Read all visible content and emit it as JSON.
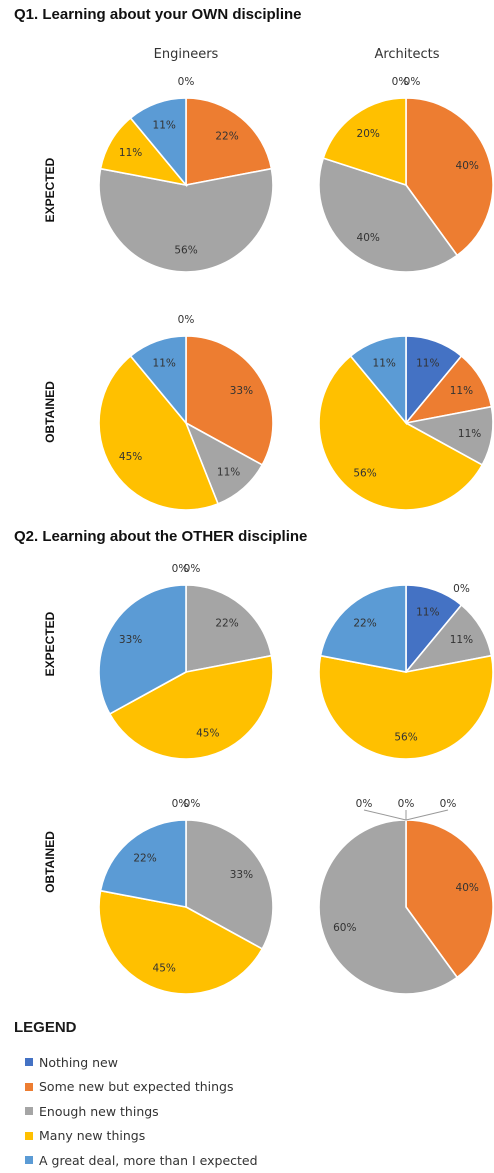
{
  "sections": [
    {
      "title": "Q1. Learning about your OWN discipline"
    },
    {
      "title": "Q2. Learning about the OTHER discipline"
    }
  ],
  "columns": [
    "Engineers",
    "Architects"
  ],
  "rows": [
    "EXPECTED",
    "OBTAINED"
  ],
  "legend": {
    "title": "LEGEND",
    "items": [
      {
        "label": "Nothing new",
        "color": "#4472c4"
      },
      {
        "label": "Some new but expected things",
        "color": "#ed7d31"
      },
      {
        "label": "Enough new things",
        "color": "#a5a5a5"
      },
      {
        "label": "Many new things",
        "color": "#ffc000"
      },
      {
        "label": "A great deal, more than I expected",
        "color": "#5b9bd5"
      }
    ]
  },
  "chart_data": [
    {
      "type": "pie",
      "question": "Q1",
      "group": "Engineers",
      "row": "EXPECTED",
      "slices": [
        {
          "category": "Nothing new",
          "value": 0,
          "label": "0%"
        },
        {
          "category": "Some new but expected things",
          "value": 22,
          "label": "22%"
        },
        {
          "category": "Enough new things",
          "value": 56,
          "label": "56%"
        },
        {
          "category": "Many new things",
          "value": 11,
          "label": "11%"
        },
        {
          "category": "A great deal, more than I expected",
          "value": 11,
          "label": "11%"
        }
      ]
    },
    {
      "type": "pie",
      "question": "Q1",
      "group": "Architects",
      "row": "EXPECTED",
      "slices": [
        {
          "category": "Nothing new",
          "value": 0,
          "label": "0%"
        },
        {
          "category": "Some new but expected things",
          "value": 40,
          "label": "40%"
        },
        {
          "category": "Enough new things",
          "value": 40,
          "label": "40%"
        },
        {
          "category": "Many new things",
          "value": 20,
          "label": "20%"
        },
        {
          "category": "A great deal, more than I expected",
          "value": 0,
          "label": "0%"
        }
      ]
    },
    {
      "type": "pie",
      "question": "Q1",
      "group": "Engineers",
      "row": "OBTAINED",
      "slices": [
        {
          "category": "Nothing new",
          "value": 0,
          "label": "0%"
        },
        {
          "category": "Some new but expected things",
          "value": 33,
          "label": "33%"
        },
        {
          "category": "Enough new things",
          "value": 11,
          "label": "11%"
        },
        {
          "category": "Many new things",
          "value": 45,
          "label": "45%"
        },
        {
          "category": "A great deal, more than I expected",
          "value": 11,
          "label": "11%"
        }
      ]
    },
    {
      "type": "pie",
      "question": "Q1",
      "group": "Architects",
      "row": "OBTAINED",
      "slices": [
        {
          "category": "Nothing new",
          "value": 11,
          "label": "11%"
        },
        {
          "category": "Some new but expected things",
          "value": 11,
          "label": "11%"
        },
        {
          "category": "Enough new things",
          "value": 11,
          "label": "11%"
        },
        {
          "category": "Many new things",
          "value": 56,
          "label": "56%"
        },
        {
          "category": "A great deal, more than I expected",
          "value": 11,
          "label": "11%"
        }
      ]
    },
    {
      "type": "pie",
      "question": "Q2",
      "group": "Engineers",
      "row": "EXPECTED",
      "slices": [
        {
          "category": "Nothing new",
          "value": 0,
          "label": "0%"
        },
        {
          "category": "Some new but expected things",
          "value": 0,
          "label": "0%"
        },
        {
          "category": "Enough new things",
          "value": 22,
          "label": "22%"
        },
        {
          "category": "Many new things",
          "value": 45,
          "label": "45%"
        },
        {
          "category": "A great deal, more than I expected",
          "value": 33,
          "label": "33%"
        }
      ]
    },
    {
      "type": "pie",
      "question": "Q2",
      "group": "Architects",
      "row": "EXPECTED",
      "slices": [
        {
          "category": "Nothing new",
          "value": 11,
          "label": "11%"
        },
        {
          "category": "Some new but expected things",
          "value": 0,
          "label": "0%"
        },
        {
          "category": "Enough new things",
          "value": 11,
          "label": "11%"
        },
        {
          "category": "Many new things",
          "value": 56,
          "label": "56%"
        },
        {
          "category": "A great deal, more than I expected",
          "value": 22,
          "label": "22%"
        }
      ]
    },
    {
      "type": "pie",
      "question": "Q2",
      "group": "Engineers",
      "row": "OBTAINED",
      "slices": [
        {
          "category": "Nothing new",
          "value": 0,
          "label": "0%"
        },
        {
          "category": "Some new but expected things",
          "value": 0,
          "label": "0%"
        },
        {
          "category": "Enough new things",
          "value": 33,
          "label": "33%"
        },
        {
          "category": "Many new things",
          "value": 45,
          "label": "45%"
        },
        {
          "category": "A great deal, more than I expected",
          "value": 22,
          "label": "22%"
        }
      ]
    },
    {
      "type": "pie",
      "question": "Q2",
      "group": "Architects",
      "row": "OBTAINED",
      "slices": [
        {
          "category": "Nothing new",
          "value": 0,
          "label": "0%"
        },
        {
          "category": "Some new but expected things",
          "value": 40,
          "label": "40%"
        },
        {
          "category": "Enough new things",
          "value": 60,
          "label": "60%"
        },
        {
          "category": "Many new things",
          "value": 0,
          "label": "0%"
        },
        {
          "category": "A great deal, more than I expected",
          "value": 0,
          "label": "0%"
        }
      ]
    }
  ]
}
